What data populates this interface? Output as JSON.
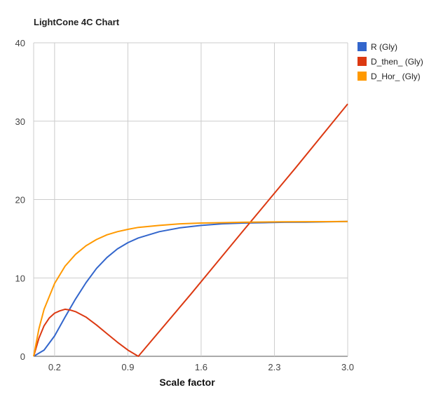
{
  "chart_data": {
    "type": "line",
    "title": "LightCone 4C Chart",
    "xlabel": "Scale factor",
    "ylabel": "",
    "xlim": [
      0,
      3.0
    ],
    "ylim": [
      0,
      40
    ],
    "x_ticks": [
      0.2,
      0.9,
      1.6,
      2.3,
      3.0
    ],
    "x_tick_labels": [
      "0.2",
      "0.9",
      "1.6",
      "2.3",
      "3.0"
    ],
    "y_ticks": [
      0,
      10,
      20,
      30,
      40
    ],
    "y_tick_labels": [
      "0",
      "10",
      "20",
      "30",
      "40"
    ],
    "grid": true,
    "legend_position": "top-right",
    "series": [
      {
        "name": "R (Gly)",
        "color": "#3366cc",
        "x": [
          0,
          0.1,
          0.2,
          0.3,
          0.4,
          0.5,
          0.6,
          0.7,
          0.8,
          0.9,
          1.0,
          1.2,
          1.4,
          1.6,
          1.8,
          2.0,
          2.2,
          2.4,
          2.6,
          2.8,
          3.0
        ],
        "y": [
          0,
          0.8,
          2.6,
          5.0,
          7.3,
          9.4,
          11.2,
          12.6,
          13.7,
          14.5,
          15.1,
          15.9,
          16.4,
          16.7,
          16.9,
          17.0,
          17.05,
          17.1,
          17.12,
          17.15,
          17.2
        ]
      },
      {
        "name": "D_then_ (Gly)",
        "color": "#dc3912",
        "x": [
          0,
          0.05,
          0.1,
          0.15,
          0.2,
          0.25,
          0.3,
          0.35,
          0.4,
          0.5,
          0.6,
          0.7,
          0.8,
          0.9,
          1.0,
          1.5,
          2.0,
          2.5,
          3.0
        ],
        "y": [
          0,
          2.3,
          3.9,
          4.9,
          5.5,
          5.8,
          6.0,
          5.9,
          5.7,
          5.0,
          4.0,
          2.9,
          1.8,
          0.8,
          0,
          7.9,
          16.0,
          24.0,
          32.2
        ]
      },
      {
        "name": "D_Hor_ (Gly)",
        "color": "#ff9900",
        "x": [
          0,
          0.05,
          0.1,
          0.2,
          0.3,
          0.4,
          0.5,
          0.6,
          0.7,
          0.8,
          0.9,
          1.0,
          1.2,
          1.4,
          1.6,
          1.8,
          2.0,
          2.4,
          2.8,
          3.0
        ],
        "y": [
          0,
          3.5,
          6.0,
          9.3,
          11.5,
          13.0,
          14.1,
          14.9,
          15.5,
          15.9,
          16.2,
          16.45,
          16.7,
          16.9,
          17.0,
          17.05,
          17.1,
          17.15,
          17.18,
          17.2
        ]
      }
    ]
  }
}
